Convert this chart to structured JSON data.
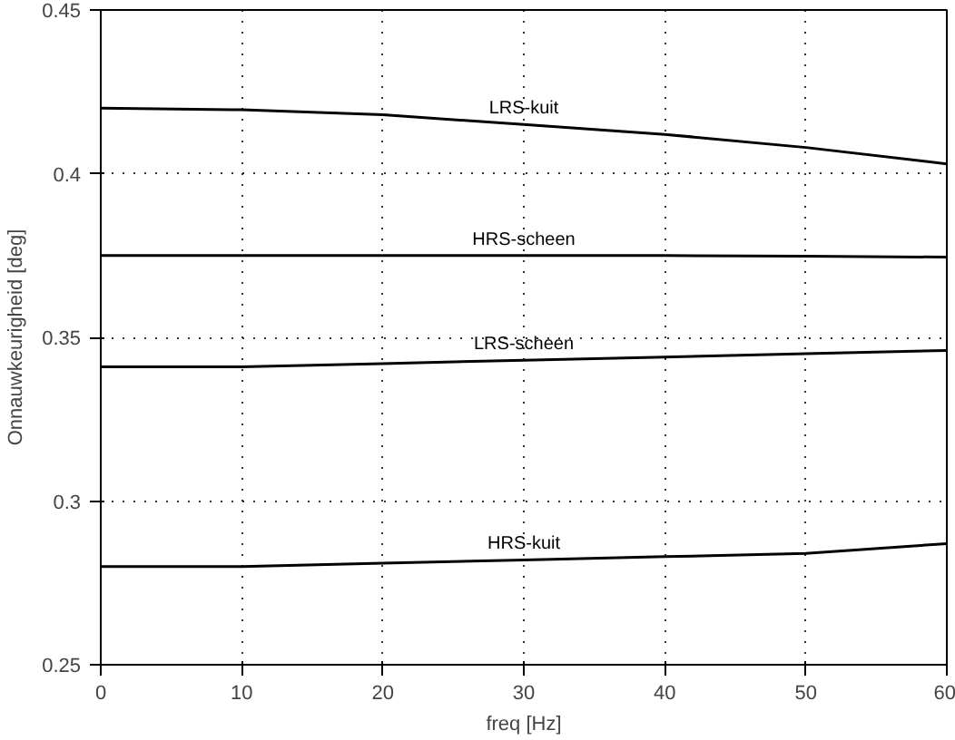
{
  "chart_data": {
    "type": "line",
    "xlabel": "freq [Hz]",
    "ylabel": "Onnauwkeurigheid [deg]",
    "x": [
      0,
      10,
      20,
      30,
      40,
      50,
      60
    ],
    "series": [
      {
        "name": "LRS-kuit",
        "color": "#000000",
        "values": [
          0.42,
          0.4195,
          0.418,
          0.415,
          0.412,
          0.408,
          0.403
        ]
      },
      {
        "name": "HRS-scheen",
        "color": "#000000",
        "values": [
          0.375,
          0.375,
          0.375,
          0.375,
          0.375,
          0.3748,
          0.3745
        ]
      },
      {
        "name": "LRS-scheen",
        "color": "#000000",
        "values": [
          0.341,
          0.341,
          0.342,
          0.343,
          0.344,
          0.345,
          0.346
        ]
      },
      {
        "name": "HRS-kuit",
        "color": "#000000",
        "values": [
          0.28,
          0.28,
          0.281,
          0.282,
          0.283,
          0.284,
          0.287
        ]
      }
    ],
    "xlim": [
      0,
      60
    ],
    "xticks": [
      0,
      10,
      20,
      30,
      40,
      50,
      60
    ],
    "ylim": [
      0.25,
      0.45
    ],
    "yticks": [
      0.25,
      0.3,
      0.35,
      0.4,
      0.45
    ],
    "grid": true,
    "line_style": "solid",
    "legend": false
  }
}
